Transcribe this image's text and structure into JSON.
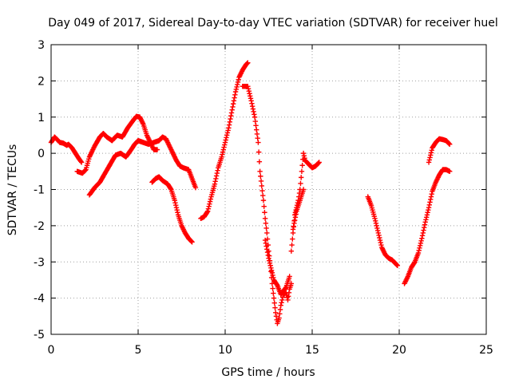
{
  "chart_data": {
    "type": "scatter",
    "title": "Day 049 of 2017, Sidereal Day-to-day VTEC variation (SDTVAR) for receiver huel",
    "xlabel": "GPS time / hours",
    "ylabel": "SDTVAR / TECUs",
    "xlim": [
      0,
      25
    ],
    "ylim": [
      -5,
      3
    ],
    "xticks": [
      0,
      5,
      10,
      15,
      20,
      25
    ],
    "yticks": [
      -5,
      -4,
      -3,
      -2,
      -1,
      0,
      1,
      2,
      3
    ],
    "grid": true,
    "marker": "+",
    "color": "#ff0000",
    "segments": [
      [
        [
          0.0,
          0.3
        ],
        [
          0.2,
          0.45
        ],
        [
          0.35,
          0.38
        ],
        [
          0.5,
          0.3
        ],
        [
          0.7,
          0.28
        ],
        [
          0.9,
          0.22
        ],
        [
          1.0,
          0.25
        ],
        [
          1.2,
          0.15
        ],
        [
          1.4,
          0.0
        ],
        [
          1.6,
          -0.15
        ],
        [
          1.75,
          -0.25
        ]
      ],
      [
        [
          1.5,
          -0.5
        ],
        [
          1.8,
          -0.55
        ],
        [
          2.0,
          -0.45
        ],
        [
          2.2,
          -0.1
        ],
        [
          2.5,
          0.2
        ],
        [
          2.8,
          0.45
        ],
        [
          3.0,
          0.55
        ],
        [
          3.2,
          0.45
        ],
        [
          3.5,
          0.35
        ],
        [
          3.8,
          0.5
        ],
        [
          4.1,
          0.45
        ],
        [
          4.4,
          0.7
        ],
        [
          4.7,
          0.9
        ],
        [
          4.9,
          1.02
        ],
        [
          5.1,
          1.0
        ],
        [
          5.3,
          0.8
        ],
        [
          5.5,
          0.5
        ],
        [
          5.7,
          0.3
        ],
        [
          5.9,
          0.1
        ],
        [
          6.1,
          0.1
        ]
      ],
      [
        [
          2.2,
          -1.15
        ],
        [
          2.5,
          -0.95
        ],
        [
          2.8,
          -0.8
        ],
        [
          3.1,
          -0.55
        ],
        [
          3.4,
          -0.3
        ],
        [
          3.7,
          -0.05
        ],
        [
          4.0,
          0.0
        ],
        [
          4.3,
          -0.1
        ],
        [
          4.6,
          0.1
        ],
        [
          4.8,
          0.25
        ],
        [
          5.0,
          0.35
        ],
        [
          5.3,
          0.3
        ],
        [
          5.6,
          0.25
        ],
        [
          5.9,
          0.3
        ],
        [
          6.2,
          0.35
        ],
        [
          6.4,
          0.45
        ],
        [
          6.6,
          0.4
        ],
        [
          6.8,
          0.2
        ],
        [
          7.0,
          0.0
        ],
        [
          7.2,
          -0.2
        ],
        [
          7.4,
          -0.35
        ],
        [
          7.6,
          -0.4
        ],
        [
          7.9,
          -0.45
        ],
        [
          8.1,
          -0.7
        ],
        [
          8.3,
          -0.95
        ]
      ],
      [
        [
          5.8,
          -0.8
        ],
        [
          6.0,
          -0.7
        ],
        [
          6.2,
          -0.65
        ],
        [
          6.4,
          -0.75
        ],
        [
          6.7,
          -0.85
        ],
        [
          6.9,
          -1.0
        ],
        [
          7.1,
          -1.3
        ],
        [
          7.3,
          -1.7
        ],
        [
          7.5,
          -2.0
        ],
        [
          7.7,
          -2.2
        ],
        [
          7.9,
          -2.35
        ],
        [
          8.1,
          -2.45
        ]
      ],
      [
        [
          8.6,
          -1.8
        ],
        [
          8.8,
          -1.75
        ],
        [
          9.0,
          -1.6
        ],
        [
          9.2,
          -1.2
        ],
        [
          9.4,
          -0.85
        ],
        [
          9.6,
          -0.4
        ],
        [
          9.8,
          -0.1
        ],
        [
          10.0,
          0.3
        ],
        [
          10.2,
          0.7
        ],
        [
          10.4,
          1.2
        ],
        [
          10.6,
          1.7
        ],
        [
          10.8,
          2.1
        ],
        [
          11.0,
          2.3
        ],
        [
          11.2,
          2.45
        ],
        [
          11.3,
          2.5
        ]
      ],
      [
        [
          11.0,
          1.85
        ],
        [
          11.3,
          1.85
        ],
        [
          11.5,
          1.45
        ],
        [
          11.7,
          1.0
        ],
        [
          11.9,
          0.3
        ],
        [
          12.0,
          -0.5
        ],
        [
          12.2,
          -1.3
        ],
        [
          12.3,
          -1.8
        ],
        [
          12.4,
          -2.2
        ],
        [
          12.5,
          -2.7
        ],
        [
          12.6,
          -3.1
        ],
        [
          12.7,
          -3.6
        ],
        [
          12.8,
          -4.0
        ],
        [
          12.9,
          -4.4
        ],
        [
          13.0,
          -4.7
        ],
        [
          13.1,
          -4.55
        ],
        [
          13.2,
          -4.2
        ],
        [
          13.35,
          -3.9
        ],
        [
          13.5,
          -3.85
        ],
        [
          13.6,
          -4.05
        ],
        [
          13.7,
          -3.75
        ],
        [
          13.8,
          -3.6
        ]
      ],
      [
        [
          12.3,
          -2.4
        ],
        [
          12.5,
          -2.9
        ],
        [
          12.7,
          -3.3
        ],
        [
          12.8,
          -3.5
        ],
        [
          13.0,
          -3.65
        ],
        [
          13.2,
          -3.9
        ],
        [
          13.5,
          -3.7
        ],
        [
          13.7,
          -3.4
        ]
      ],
      [
        [
          13.8,
          -2.7
        ],
        [
          13.9,
          -2.2
        ],
        [
          14.0,
          -1.7
        ],
        [
          14.2,
          -1.3
        ],
        [
          14.3,
          -1.0
        ],
        [
          14.4,
          -0.5
        ],
        [
          14.5,
          0.0
        ],
        [
          14.6,
          -0.2
        ],
        [
          14.8,
          -0.3
        ],
        [
          15.0,
          -0.4
        ],
        [
          15.2,
          -0.35
        ],
        [
          15.4,
          -0.25
        ]
      ],
      [
        [
          13.9,
          -2.1
        ],
        [
          14.1,
          -1.6
        ],
        [
          14.3,
          -1.3
        ],
        [
          14.5,
          -1.0
        ]
      ],
      [
        [
          18.2,
          -1.2
        ],
        [
          18.4,
          -1.45
        ],
        [
          18.6,
          -1.8
        ],
        [
          18.8,
          -2.2
        ],
        [
          19.0,
          -2.6
        ],
        [
          19.2,
          -2.8
        ],
        [
          19.4,
          -2.9
        ],
        [
          19.6,
          -2.95
        ],
        [
          19.8,
          -3.05
        ],
        [
          19.9,
          -3.1
        ]
      ],
      [
        [
          20.3,
          -3.6
        ],
        [
          20.5,
          -3.4
        ],
        [
          20.7,
          -3.15
        ],
        [
          20.9,
          -3.0
        ],
        [
          21.1,
          -2.75
        ],
        [
          21.3,
          -2.35
        ],
        [
          21.5,
          -1.9
        ],
        [
          21.7,
          -1.5
        ],
        [
          21.9,
          -1.05
        ],
        [
          22.1,
          -0.8
        ],
        [
          22.3,
          -0.6
        ],
        [
          22.5,
          -0.45
        ],
        [
          22.7,
          -0.45
        ],
        [
          22.9,
          -0.5
        ]
      ],
      [
        [
          21.7,
          -0.25
        ],
        [
          21.9,
          0.15
        ],
        [
          22.1,
          0.3
        ],
        [
          22.3,
          0.4
        ],
        [
          22.5,
          0.38
        ],
        [
          22.7,
          0.35
        ],
        [
          22.9,
          0.25
        ]
      ]
    ]
  }
}
